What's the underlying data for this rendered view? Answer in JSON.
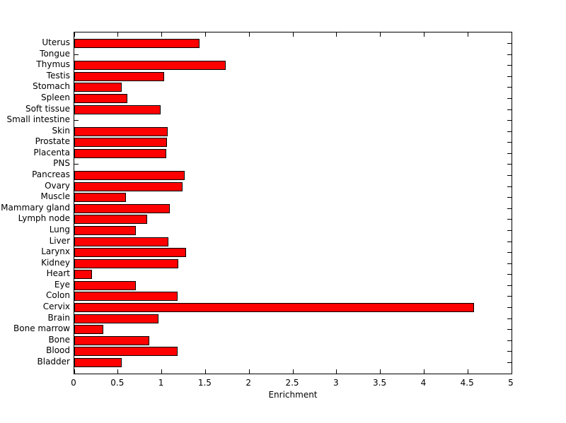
{
  "chart_data": {
    "type": "bar",
    "orientation": "horizontal",
    "title": "",
    "xlabel": "Enrichment",
    "ylabel": "",
    "categories": [
      "Uterus",
      "Tongue",
      "Thymus",
      "Testis",
      "Stomach",
      "Spleen",
      "Soft tissue",
      "Small intestine",
      "Skin",
      "Prostate",
      "Placenta",
      "PNS",
      "Pancreas",
      "Ovary",
      "Muscle",
      "Mammary gland",
      "Lymph node",
      "Lung",
      "Liver",
      "Larynx",
      "Kidney",
      "Heart",
      "Eye",
      "Colon",
      "Cervix",
      "Brain",
      "Bone marrow",
      "Bone",
      "Blood",
      "Bladder"
    ],
    "values": [
      1.43,
      0,
      1.73,
      1.03,
      0.54,
      0.61,
      0.99,
      0,
      1.07,
      1.06,
      1.05,
      0,
      1.26,
      1.24,
      0.59,
      1.09,
      0.83,
      0.7,
      1.08,
      1.28,
      1.19,
      0.2,
      0.7,
      1.18,
      4.57,
      0.96,
      0.33,
      0.86,
      1.18,
      0.54
    ],
    "xlim": [
      0,
      5
    ],
    "xticks": [
      0,
      0.5,
      1,
      1.5,
      2,
      2.5,
      3,
      3.5,
      4,
      4.5,
      5
    ],
    "xtick_labels": [
      "0",
      "0.5",
      "1",
      "1.5",
      "2",
      "2.5",
      "3",
      "3.5",
      "4",
      "4.5",
      "5"
    ],
    "grid": false,
    "legend": "none",
    "bar_color": "#ff0000",
    "bar_edge_color": "#000000",
    "axis_color": "#000000",
    "background_color": "#ffffff"
  }
}
